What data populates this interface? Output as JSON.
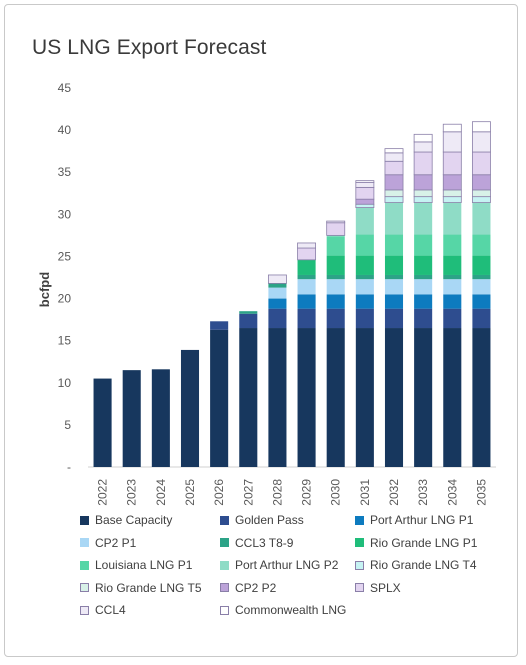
{
  "title": "US LNG Export Forecast",
  "chart_data": {
    "type": "bar",
    "stacked": true,
    "title": "US LNG Export Forecast",
    "ylabel": "bcfpd",
    "xlabel": "",
    "ylim": [
      0,
      45
    ],
    "yticks": [
      0,
      5,
      10,
      15,
      20,
      25,
      30,
      35,
      40,
      45
    ],
    "ytick_labels": [
      "-",
      "5",
      "10",
      "15",
      "20",
      "25",
      "30",
      "35",
      "40",
      "45"
    ],
    "categories": [
      "2022",
      "2023",
      "2024",
      "2025",
      "2026",
      "2027",
      "2028",
      "2029",
      "2030",
      "2031",
      "2032",
      "2033",
      "2034",
      "2035"
    ],
    "grid": false,
    "legend_position": "bottom",
    "series": [
      {
        "name": "Base Capacity",
        "color": "#17375e",
        "values": [
          10.5,
          11.5,
          11.6,
          13.9,
          16.3,
          16.5,
          16.5,
          16.5,
          16.5,
          16.5,
          16.5,
          16.5,
          16.5,
          16.5
        ]
      },
      {
        "name": "Golden Pass",
        "color": "#2e4d8f",
        "values": [
          0,
          0,
          0,
          0,
          1.0,
          1.7,
          2.3,
          2.3,
          2.3,
          2.3,
          2.3,
          2.3,
          2.3,
          2.3
        ]
      },
      {
        "name": "Port Arthur LNG P1",
        "color": "#0d7bbf",
        "values": [
          0,
          0,
          0,
          0,
          0,
          0,
          1.2,
          1.7,
          1.7,
          1.7,
          1.7,
          1.7,
          1.7,
          1.7
        ]
      },
      {
        "name": "CP2 P1",
        "color": "#a9d7f5",
        "values": [
          0,
          0,
          0,
          0,
          0,
          0,
          1.3,
          1.8,
          1.8,
          1.8,
          1.8,
          1.8,
          1.8,
          1.8
        ]
      },
      {
        "name": "CCL3 T8-9",
        "color": "#2ca387",
        "values": [
          0,
          0,
          0,
          0,
          0,
          0.3,
          0.5,
          0.5,
          0.5,
          0.5,
          0.5,
          0.5,
          0.5,
          0.5
        ]
      },
      {
        "name": "Rio Grande LNG P1",
        "color": "#1fbd7a",
        "values": [
          0,
          0,
          0,
          0,
          0,
          0,
          0,
          1.8,
          2.3,
          2.3,
          2.3,
          2.3,
          2.3,
          2.3
        ]
      },
      {
        "name": "Louisiana LNG P1",
        "color": "#56d6a6",
        "values": [
          0,
          0,
          0,
          0,
          0,
          0,
          0,
          0,
          2.3,
          2.5,
          2.5,
          2.5,
          2.5,
          2.5
        ]
      },
      {
        "name": "Port Arthur LNG P2",
        "color": "#8fdcc6",
        "values": [
          0,
          0,
          0,
          0,
          0,
          0,
          0,
          0,
          0.1,
          3.2,
          3.8,
          3.8,
          3.8,
          3.8
        ]
      },
      {
        "name": "Rio Grande LNG T4",
        "color": "#c6f3f3",
        "values": [
          0,
          0,
          0,
          0,
          0,
          0,
          0,
          0,
          0,
          0.4,
          0.7,
          0.7,
          0.7,
          0.7
        ]
      },
      {
        "name": "Rio Grande LNG T5",
        "color": "#d8f1e8",
        "values": [
          0,
          0,
          0,
          0,
          0,
          0,
          0,
          0,
          0,
          0,
          0.8,
          0.8,
          0.8,
          0.8
        ]
      },
      {
        "name": "CP2 P2",
        "color": "#bca3d9",
        "values": [
          0,
          0,
          0,
          0,
          0,
          0,
          0,
          0,
          0,
          0.6,
          1.8,
          1.8,
          1.8,
          1.8
        ]
      },
      {
        "name": "SPLX",
        "color": "#e2d4f0",
        "values": [
          0,
          0,
          0,
          0,
          0,
          0,
          0,
          1.4,
          1.5,
          1.4,
          1.6,
          2.7,
          2.7,
          2.7
        ]
      },
      {
        "name": "CCL4",
        "color": "#eeeaf6",
        "values": [
          0,
          0,
          0,
          0,
          0,
          0,
          1.0,
          0.6,
          0.2,
          0.6,
          1.0,
          1.2,
          2.4,
          2.4
        ]
      },
      {
        "name": "Commonwealth LNG",
        "color": "#ffffff",
        "values": [
          0,
          0,
          0,
          0,
          0,
          0,
          0,
          0,
          0,
          0.2,
          0.5,
          0.9,
          0.9,
          1.2
        ]
      }
    ]
  }
}
